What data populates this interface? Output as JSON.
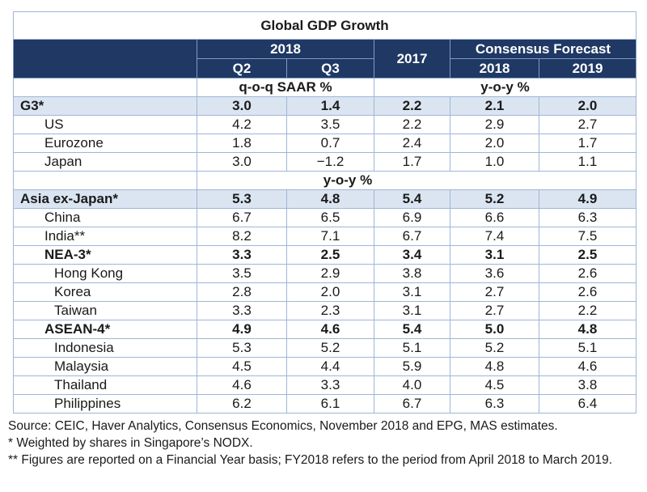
{
  "title": "Global GDP Growth",
  "header": {
    "group_2018": "2018",
    "q2": "Q2",
    "q3": "Q3",
    "y2017": "2017",
    "consensus": "Consensus Forecast",
    "cf2018": "2018",
    "cf2019": "2019"
  },
  "units": {
    "qoq": "q-o-q SAAR %",
    "yoy": "y-o-y %",
    "yoy_all": "y-o-y %"
  },
  "colors": {
    "header_bg": "#1f3864",
    "aggregate_bg": "#dbe5f1",
    "border": "#9fb6d6"
  },
  "rows_g3": [
    {
      "label": "G3*",
      "values": [
        "3.0",
        "1.4",
        "2.2",
        "2.1",
        "2.0"
      ],
      "style": "aggregate"
    },
    {
      "label": "US",
      "values": [
        "4.2",
        "3.5",
        "2.2",
        "2.9",
        "2.7"
      ],
      "style": "country"
    },
    {
      "label": "Eurozone",
      "values": [
        "1.8",
        "0.7",
        "2.4",
        "2.0",
        "1.7"
      ],
      "style": "country"
    },
    {
      "label": "Japan",
      "values": [
        "3.0",
        "−1.2",
        "1.7",
        "1.0",
        "1.1"
      ],
      "style": "country"
    }
  ],
  "rows_asia": [
    {
      "label": "Asia ex-Japan*",
      "values": [
        "5.3",
        "4.8",
        "5.4",
        "5.2",
        "4.9"
      ],
      "style": "aggregate"
    },
    {
      "label": "China",
      "values": [
        "6.7",
        "6.5",
        "6.9",
        "6.6",
        "6.3"
      ],
      "style": "country"
    },
    {
      "label": "India**",
      "values": [
        "8.2",
        "7.1",
        "6.7",
        "7.4",
        "7.5"
      ],
      "style": "country"
    },
    {
      "label": "NEA-3*",
      "values": [
        "3.3",
        "2.5",
        "3.4",
        "3.1",
        "2.5"
      ],
      "style": "subaggregate"
    },
    {
      "label": "Hong Kong",
      "values": [
        "3.5",
        "2.9",
        "3.8",
        "3.6",
        "2.6"
      ],
      "style": "subcountry"
    },
    {
      "label": "Korea",
      "values": [
        "2.8",
        "2.0",
        "3.1",
        "2.7",
        "2.6"
      ],
      "style": "subcountry"
    },
    {
      "label": "Taiwan",
      "values": [
        "3.3",
        "2.3",
        "3.1",
        "2.7",
        "2.2"
      ],
      "style": "subcountry"
    },
    {
      "label": "ASEAN-4*",
      "values": [
        "4.9",
        "4.6",
        "5.4",
        "5.0",
        "4.8"
      ],
      "style": "subaggregate"
    },
    {
      "label": "Indonesia",
      "values": [
        "5.3",
        "5.2",
        "5.1",
        "5.2",
        "5.1"
      ],
      "style": "subcountry"
    },
    {
      "label": "Malaysia",
      "values": [
        "4.5",
        "4.4",
        "5.9",
        "4.8",
        "4.6"
      ],
      "style": "subcountry"
    },
    {
      "label": "Thailand",
      "values": [
        "4.6",
        "3.3",
        "4.0",
        "4.5",
        "3.8"
      ],
      "style": "subcountry"
    },
    {
      "label": "Philippines",
      "values": [
        "6.2",
        "6.1",
        "6.7",
        "6.3",
        "6.4"
      ],
      "style": "subcountry"
    }
  ],
  "notes": {
    "source": "Source: CEIC, Haver Analytics, Consensus Economics, November 2018 and EPG, MAS estimates.",
    "note1": "* Weighted by shares in Singapore’s NODX.",
    "note2": "** Figures are reported on a Financial Year basis; FY2018 refers to the period from April 2018 to March 2019."
  }
}
